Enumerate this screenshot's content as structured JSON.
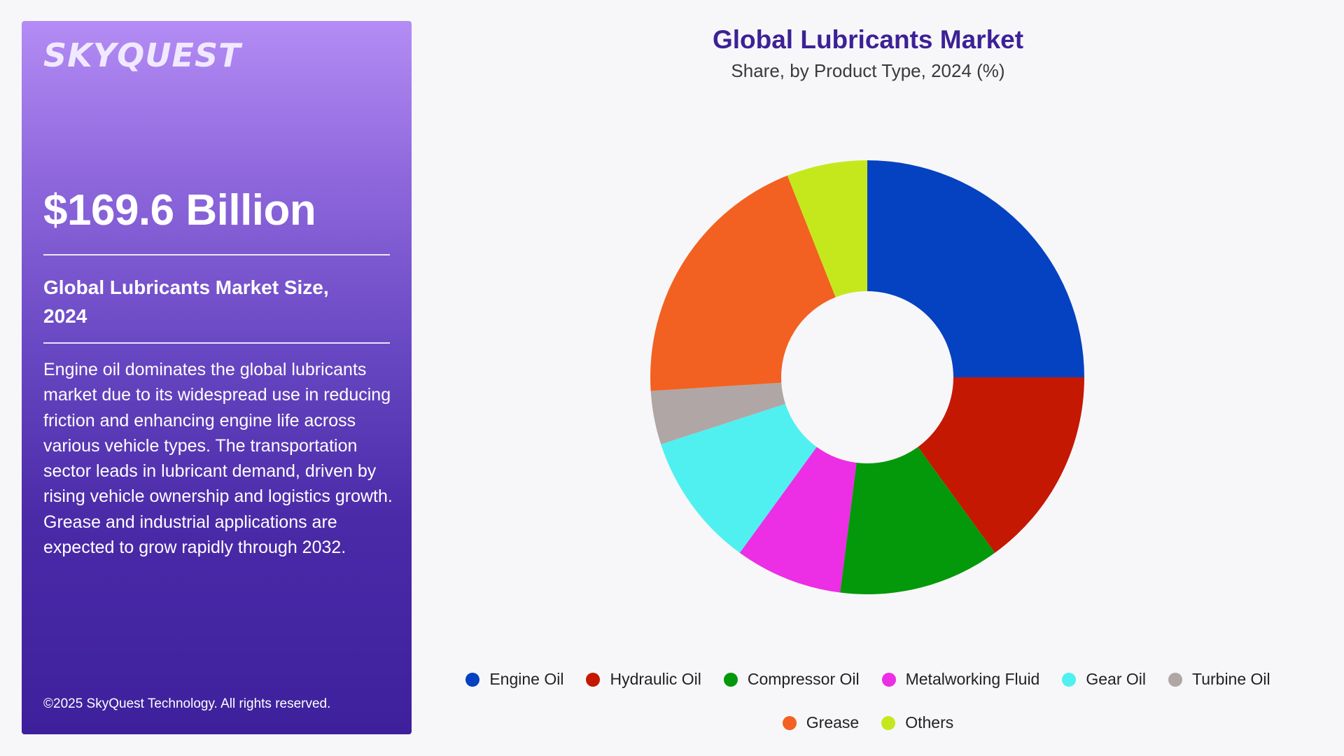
{
  "brand": {
    "logo_text": "SKYQUEST"
  },
  "summary": {
    "market_value": "$169.6 Billion",
    "size_label": "Global Lubricants Market Size, 2024",
    "description": "Engine oil dominates the global lubricants market due to its widespread use in reducing friction and enhancing engine life across various vehicle types. The transportation sector leads in lubricant demand, driven by rising vehicle ownership and logistics growth. Grease and industrial applications are expected to grow rapidly through 2032.",
    "copyright": "©2025 SkyQuest Technology. All rights reserved."
  },
  "chart_data": {
    "type": "pie",
    "variant": "donut",
    "title": "Global Lubricants Market",
    "subtitle": "Share, by Product Type, 2024 (%)",
    "categories": [
      "Engine Oil",
      "Hydraulic Oil",
      "Compressor Oil",
      "Metalworking Fluid",
      "Gear Oil",
      "Turbine Oil",
      "Grease",
      "Others"
    ],
    "values": [
      25,
      15,
      12,
      8,
      10,
      4,
      20,
      6
    ],
    "colors": [
      "#0442c1",
      "#c51803",
      "#03990a",
      "#ec2ee4",
      "#50f0f0",
      "#b1a6a6",
      "#f26121",
      "#c5e81d"
    ],
    "legend_position": "bottom"
  }
}
